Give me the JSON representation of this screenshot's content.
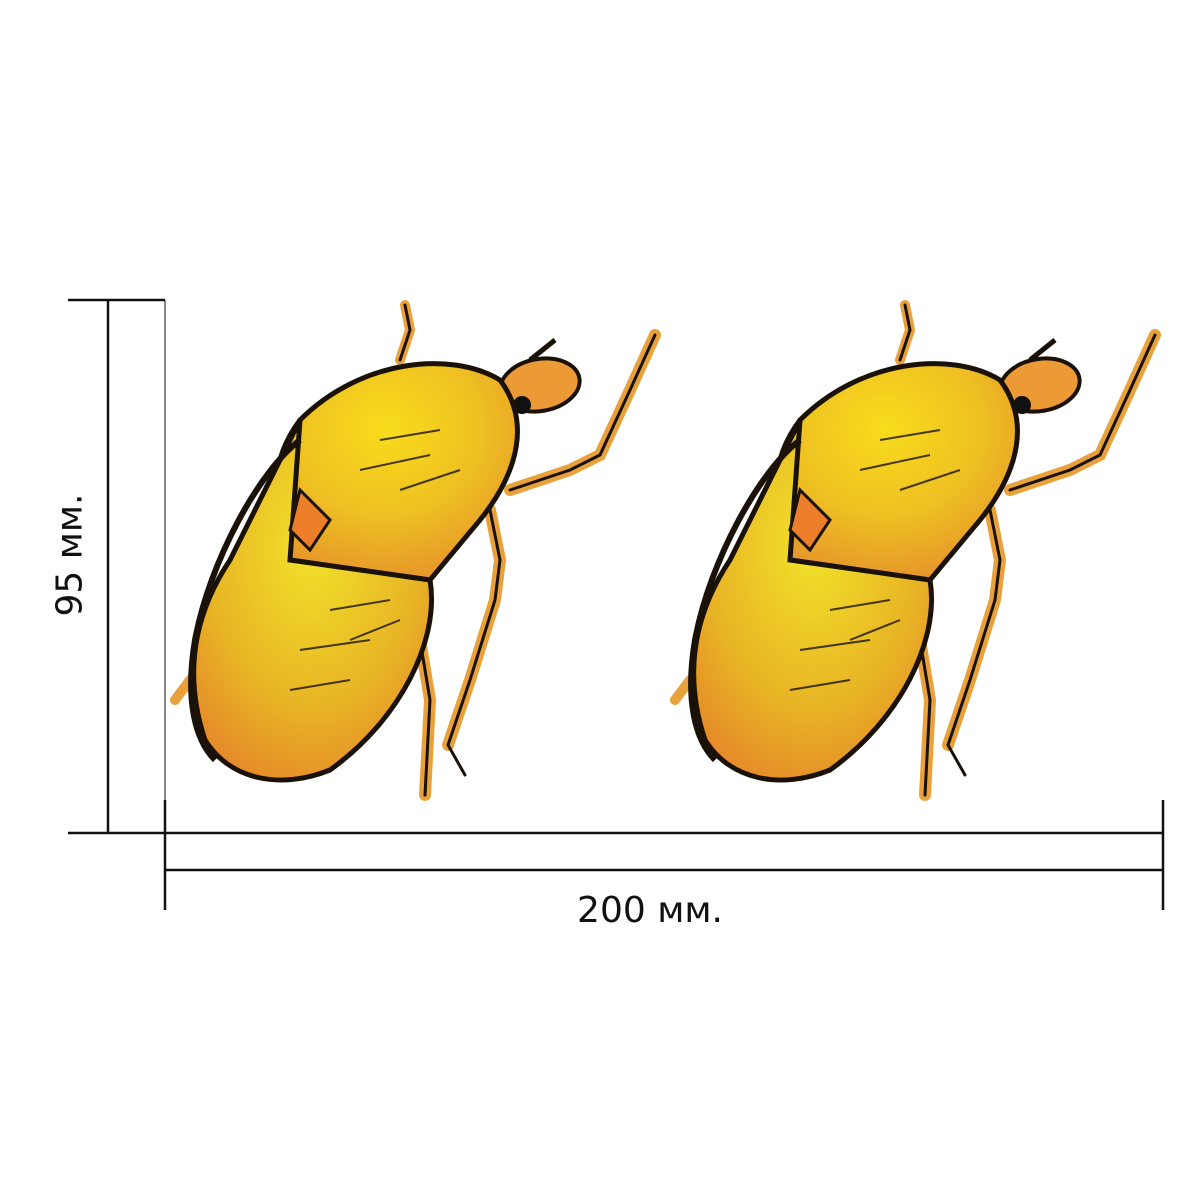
{
  "dimensions": {
    "width_label": "200 мм.",
    "height_label": "95 мм."
  },
  "illustration": {
    "subject": "beetle-icon",
    "count": 2
  },
  "colors": {
    "line": "#111111",
    "shell_light": "#f7d31a",
    "shell_mid": "#eab020",
    "shell_dark": "#e8892a",
    "leg": "#e9a23b",
    "outline": "#1a1208"
  }
}
